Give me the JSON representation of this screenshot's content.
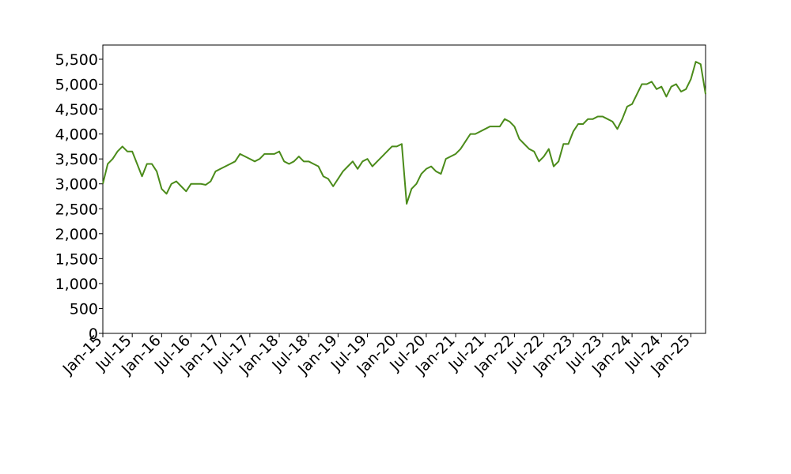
{
  "chart_data": {
    "type": "line",
    "x": [
      "Jan-15",
      "Feb-15",
      "Mar-15",
      "Apr-15",
      "May-15",
      "Jun-15",
      "Jul-15",
      "Aug-15",
      "Sep-15",
      "Oct-15",
      "Nov-15",
      "Dec-15",
      "Jan-16",
      "Feb-16",
      "Mar-16",
      "Apr-16",
      "May-16",
      "Jun-16",
      "Jul-16",
      "Aug-16",
      "Sep-16",
      "Oct-16",
      "Nov-16",
      "Dec-16",
      "Jan-17",
      "Feb-17",
      "Mar-17",
      "Apr-17",
      "May-17",
      "Jun-17",
      "Jul-17",
      "Aug-17",
      "Sep-17",
      "Oct-17",
      "Nov-17",
      "Dec-17",
      "Jan-18",
      "Feb-18",
      "Mar-18",
      "Apr-18",
      "May-18",
      "Jun-18",
      "Jul-18",
      "Aug-18",
      "Sep-18",
      "Oct-18",
      "Nov-18",
      "Dec-18",
      "Jan-19",
      "Feb-19",
      "Mar-19",
      "Apr-19",
      "May-19",
      "Jun-19",
      "Jul-19",
      "Aug-19",
      "Sep-19",
      "Oct-19",
      "Nov-19",
      "Dec-19",
      "Jan-20",
      "Feb-20",
      "Mar-20",
      "Apr-20",
      "May-20",
      "Jun-20",
      "Jul-20",
      "Aug-20",
      "Sep-20",
      "Oct-20",
      "Nov-20",
      "Dec-20",
      "Jan-21",
      "Feb-21",
      "Mar-21",
      "Apr-21",
      "May-21",
      "Jun-21",
      "Jul-21",
      "Aug-21",
      "Sep-21",
      "Oct-21",
      "Nov-21",
      "Dec-21",
      "Jan-22",
      "Feb-22",
      "Mar-22",
      "Apr-22",
      "May-22",
      "Jun-22",
      "Jul-22",
      "Aug-22",
      "Sep-22",
      "Oct-22",
      "Nov-22",
      "Dec-22",
      "Jan-23",
      "Feb-23",
      "Mar-23",
      "Apr-23",
      "May-23",
      "Jun-23",
      "Jul-23",
      "Aug-23",
      "Sep-23",
      "Oct-23",
      "Nov-23",
      "Dec-23",
      "Jan-24",
      "Feb-24",
      "Mar-24",
      "Apr-24",
      "May-24",
      "Jun-24",
      "Jul-24",
      "Aug-24",
      "Sep-24",
      "Oct-24",
      "Nov-24",
      "Dec-24",
      "Jan-25",
      "Feb-25",
      "Mar-25",
      "Apr-25"
    ],
    "series": [
      {
        "color": "#4b8b1a",
        "values": [
          3000,
          3400,
          3500,
          3650,
          3750,
          3650,
          3650,
          3400,
          3150,
          3400,
          3400,
          3250,
          2900,
          2800,
          3000,
          3050,
          2950,
          2850,
          3000,
          3000,
          3000,
          2980,
          3050,
          3250,
          3300,
          3350,
          3400,
          3450,
          3600,
          3550,
          3500,
          3450,
          3500,
          3600,
          3600,
          3600,
          3650,
          3450,
          3400,
          3450,
          3550,
          3450,
          3450,
          3400,
          3350,
          3150,
          3100,
          2950,
          3100,
          3250,
          3350,
          3450,
          3300,
          3450,
          3500,
          3350,
          3450,
          3550,
          3650,
          3750,
          3750,
          3800,
          2600,
          2900,
          3000,
          3200,
          3300,
          3350,
          3250,
          3200,
          3500,
          3550,
          3600,
          3700,
          3850,
          4000,
          4000,
          4050,
          4100,
          4150,
          4150,
          4150,
          4300,
          4250,
          4150,
          3900,
          3800,
          3700,
          3650,
          3450,
          3550,
          3700,
          3350,
          3450,
          3800,
          3800,
          4050,
          4200,
          4200,
          4300,
          4300,
          4350,
          4350,
          4300,
          4250,
          4100,
          4300,
          4550,
          4600,
          4800,
          5000,
          5000,
          5050,
          4900,
          4950,
          4750,
          4950,
          5000,
          4850,
          4900,
          5100,
          5450,
          5400,
          4800
        ]
      }
    ],
    "xticks": [
      "Jan-15",
      "Jul-15",
      "Jan-16",
      "Jul-16",
      "Jan-17",
      "Jul-17",
      "Jan-18",
      "Jul-18",
      "Jan-19",
      "Jul-19",
      "Jan-20",
      "Jul-20",
      "Jan-21",
      "Jul-21",
      "Jan-22",
      "Jul-22",
      "Jan-23",
      "Jul-23",
      "Jan-24",
      "Jul-24",
      "Jan-25"
    ],
    "ylim": [
      0,
      5785
    ],
    "yticks": [
      0,
      500,
      {
        "value": 1000,
        "label": "1,000"
      },
      {
        "value": 1500,
        "label": "1,500"
      },
      {
        "value": 2000,
        "label": "2,000"
      },
      {
        "value": 2500,
        "label": "2,500"
      },
      {
        "value": 3000,
        "label": "3,000"
      },
      {
        "value": 3500,
        "label": "3,500"
      },
      {
        "value": 4000,
        "label": "4,000"
      },
      {
        "value": 4500,
        "label": "4,500"
      },
      {
        "value": 5000,
        "label": "5,000"
      },
      {
        "value": 5500,
        "label": "5,500"
      }
    ],
    "grid": false
  }
}
